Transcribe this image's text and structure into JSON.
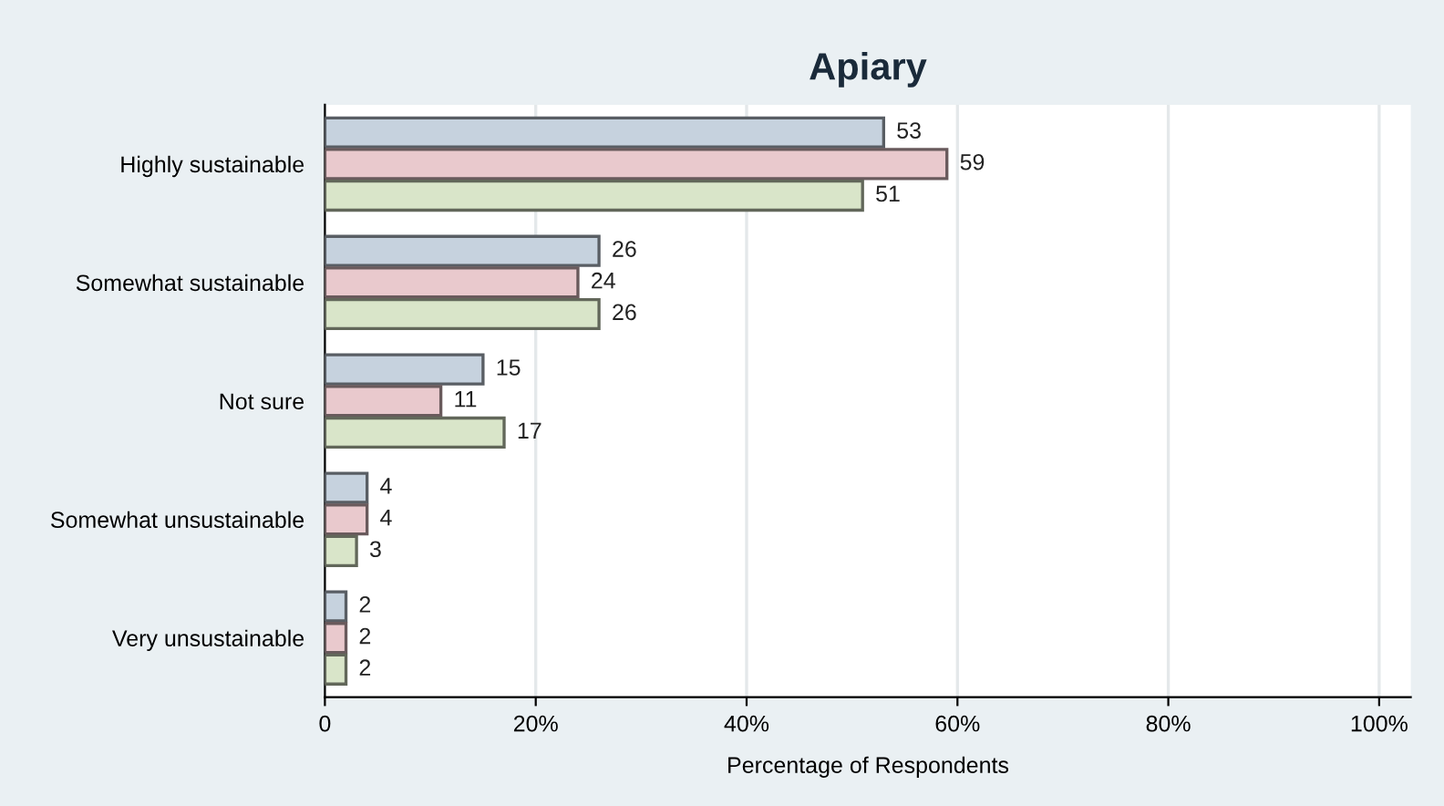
{
  "chart_data": {
    "type": "bar",
    "orientation": "horizontal",
    "title": "Apiary",
    "xlabel": "Percentage of Respondents",
    "categories": [
      "Highly sustainable",
      "Somewhat sustainable",
      "Not sure",
      "Somewhat unsustainable",
      "Very unsustainable"
    ],
    "series": [
      {
        "color": "#c6d2de",
        "values": [
          53,
          26,
          15,
          4,
          2
        ]
      },
      {
        "color": "#e9c9cd",
        "values": [
          59,
          24,
          11,
          4,
          2
        ]
      },
      {
        "color": "#d9e5c9",
        "values": [
          51,
          26,
          17,
          3,
          2
        ]
      }
    ],
    "xlim": [
      0,
      103
    ],
    "xticks": [
      0,
      {
        "value": 20,
        "label": "20%"
      },
      {
        "value": 40,
        "label": "40%"
      },
      {
        "value": 60,
        "label": "60%"
      },
      {
        "value": 80,
        "label": "80%"
      },
      {
        "value": 100,
        "label": "100%"
      }
    ],
    "grid": "x",
    "data_labels": true,
    "legend": false
  }
}
